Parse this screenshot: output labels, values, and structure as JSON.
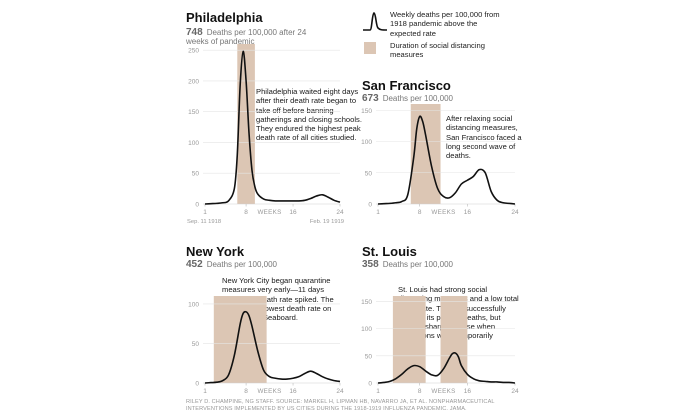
{
  "legend": {
    "line_label": "Weekly deaths per 100,000 from 1918 pandemic above the expected rate",
    "box_label": "Duration of social distancing measures",
    "line_color": "#111111",
    "box_color": "#dcc6b4"
  },
  "credit": "RILEY D. CHAMPINE, NG STAFF. SOURCE: MARKEL H, LIPMAN HB, NAVARRO JA, ET AL. NONPHARMACEUTICAL INTERVENTIONS IMPLEMENTED BY US CITIES DURING THE 1918-1919 INFLUENZA PANDEMIC. JAMA.",
  "chart_data": [
    {
      "type": "line",
      "title": "Philadelphia",
      "stat_value": "748",
      "stat_label": "Deaths per 100,000 after 24 weeks of pandemic",
      "xlabel": "WEEKS",
      "x_ticks": [
        "1",
        "8",
        "16",
        "24"
      ],
      "x_range": [
        1,
        24
      ],
      "y_ticks": [
        "0",
        "50",
        "100",
        "150",
        "200",
        "250"
      ],
      "ylim": [
        0,
        260
      ],
      "start_label": "Sep. 11 1918",
      "end_label": "Feb. 19 1919",
      "distancing": [
        [
          6.5,
          9.5
        ]
      ],
      "note": "Philadelphia waited eight days after their death rate began to take off before banning gatherings and closing schools. They endured the highest peak death rate of all cities studied.",
      "series": [
        {
          "x": [
            1,
            2,
            3,
            4,
            5,
            6,
            6.5,
            7,
            7.5,
            8,
            8.5,
            9,
            9.5,
            10,
            11,
            12,
            13,
            14,
            15,
            16,
            17,
            18,
            19,
            20,
            21,
            22,
            23,
            24
          ],
          "values": [
            0,
            0.5,
            1,
            2,
            5,
            25,
            80,
            195,
            248,
            200,
            115,
            55,
            28,
            16,
            8,
            6,
            5,
            5,
            5,
            5,
            5,
            6,
            9,
            13,
            15,
            11,
            6,
            3
          ]
        }
      ]
    },
    {
      "type": "line",
      "title": "San Francisco",
      "stat_value": "673",
      "stat_label": "Deaths per 100,000",
      "xlabel": "WEEKS",
      "x_ticks": [
        "1",
        "8",
        "16",
        "24"
      ],
      "x_range": [
        1,
        24
      ],
      "y_ticks": [
        "0",
        "50",
        "100",
        "150"
      ],
      "ylim": [
        0,
        160
      ],
      "distancing": [
        [
          6.5,
          11.5
        ]
      ],
      "note": "After relaxing social distancing measures, San Francisco faced a long second wave of deaths.",
      "series": [
        {
          "x": [
            1,
            2,
            3,
            4,
            5,
            6,
            7,
            7.5,
            8,
            8.5,
            9,
            10,
            11,
            12,
            13,
            14,
            15,
            16,
            17,
            18,
            19,
            20,
            21,
            22,
            23,
            24
          ],
          "values": [
            0,
            0.5,
            1,
            2,
            4,
            15,
            75,
            120,
            140,
            132,
            110,
            60,
            25,
            12,
            10,
            18,
            32,
            38,
            44,
            55,
            50,
            20,
            6,
            2,
            1,
            0
          ]
        }
      ]
    },
    {
      "type": "line",
      "title": "New York",
      "stat_value": "452",
      "stat_label": "Deaths per 100,000",
      "xlabel": "WEEKS",
      "x_ticks": [
        "1",
        "8",
        "16",
        "24"
      ],
      "x_range": [
        1,
        24
      ],
      "y_ticks": [
        "0",
        "50",
        "100"
      ],
      "ylim": [
        0,
        110
      ],
      "distancing": [
        [
          2.5,
          11.5
        ]
      ],
      "note": "New York City began quarantine measures very early—11 days before the death rate spiked. The city had the lowest death rate on the Eastern Seaboard.",
      "series": [
        {
          "x": [
            1,
            2,
            3,
            4,
            5,
            6,
            7,
            7.5,
            8,
            8.5,
            9,
            10,
            11,
            12,
            13,
            14,
            15,
            16,
            17,
            18,
            19,
            20,
            21,
            22,
            23,
            24
          ],
          "values": [
            0,
            0.5,
            1,
            3,
            10,
            35,
            75,
            88,
            90,
            85,
            72,
            40,
            16,
            8,
            6,
            5,
            5,
            6,
            8,
            12,
            15,
            12,
            8,
            5,
            3,
            2
          ]
        }
      ]
    },
    {
      "type": "line",
      "title": "St. Louis",
      "stat_value": "358",
      "stat_label": "Deaths per 100,000",
      "xlabel": "WEEKS",
      "x_ticks": [
        "1",
        "8",
        "16",
        "24"
      ],
      "x_range": [
        1,
        24
      ],
      "y_ticks": [
        "0",
        "50",
        "100",
        "150"
      ],
      "ylim": [
        0,
        160
      ],
      "distancing": [
        [
          3.5,
          9
        ],
        [
          11.5,
          16
        ]
      ],
      "note": "St. Louis had strong social distancing measures and a low total death rate. The city successfully delayed its peak in deaths, but faced a sharp increase when restrictions were temporarily relaxed.",
      "series": [
        {
          "x": [
            1,
            2,
            3,
            4,
            5,
            6,
            7,
            8,
            9,
            10,
            11,
            12,
            13,
            13.5,
            14,
            14.5,
            15,
            16,
            17,
            18,
            19,
            20,
            21,
            22,
            23,
            24
          ],
          "values": [
            0,
            1,
            3,
            8,
            16,
            26,
            32,
            30,
            22,
            15,
            14,
            26,
            46,
            54,
            55,
            48,
            32,
            16,
            8,
            4,
            3,
            2,
            2,
            1,
            1,
            0
          ]
        }
      ]
    }
  ]
}
